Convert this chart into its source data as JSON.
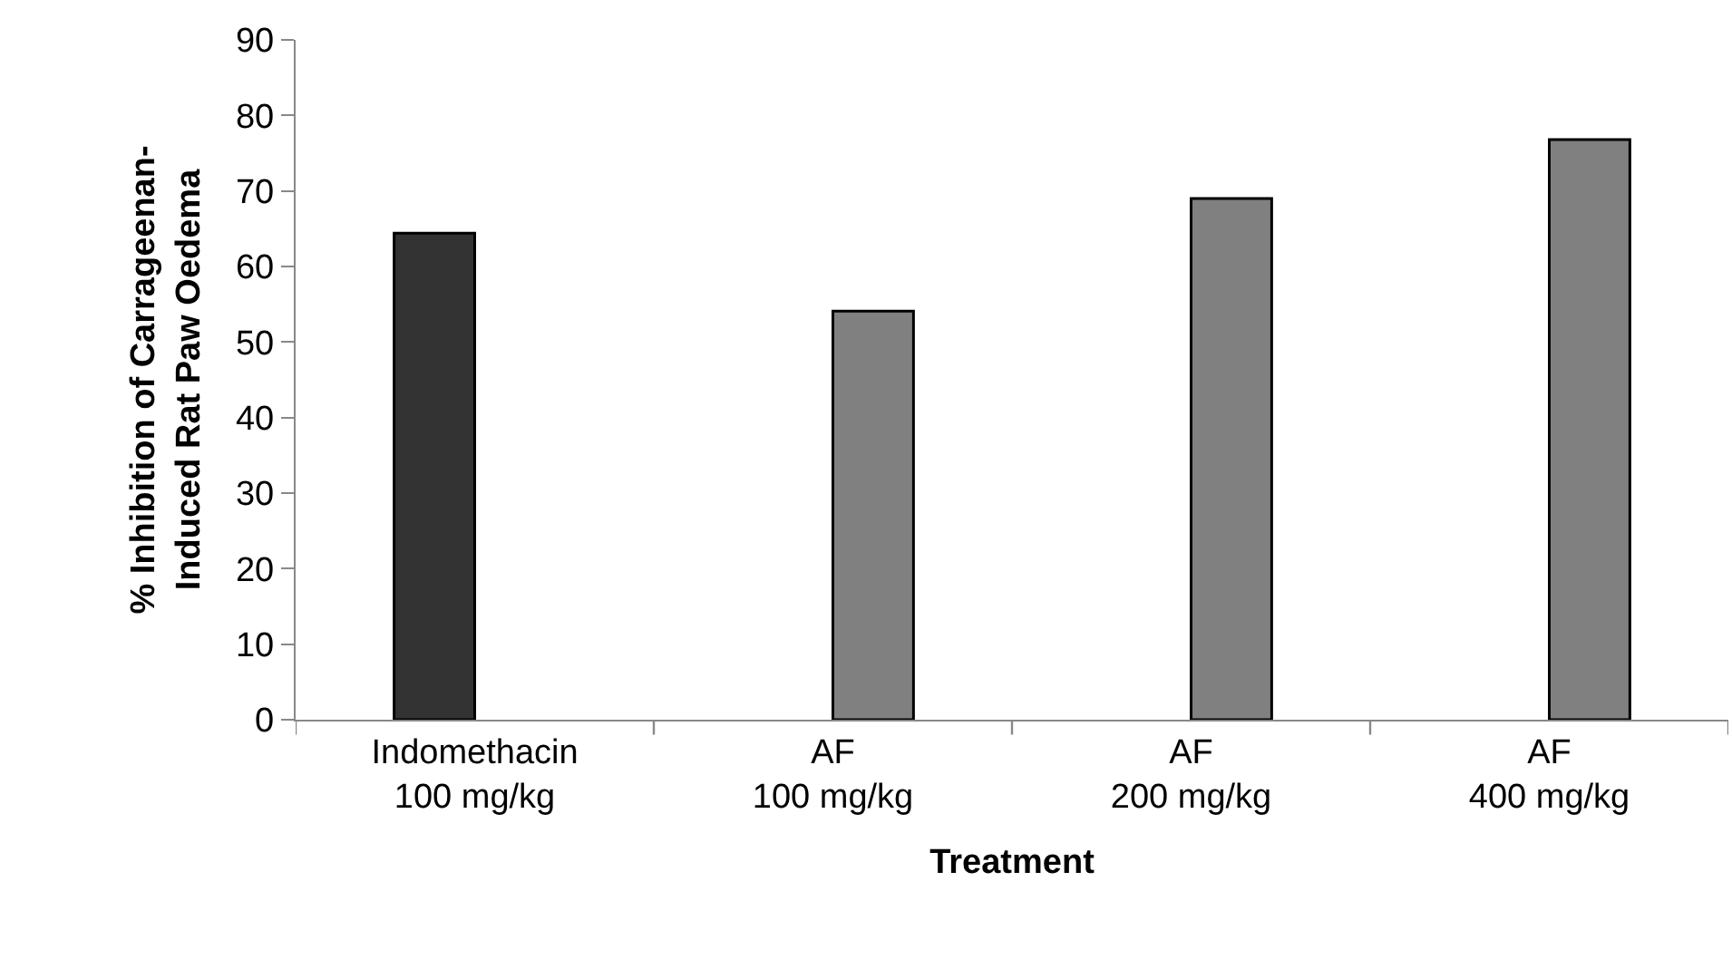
{
  "chart_data": {
    "type": "bar",
    "xlabel": "Treatment",
    "ylabel": "% Inhibition of Carrageenan-\nInduced Rat Paw Oedema",
    "categories": [
      "Indomethacin\n100 mg/kg",
      "AF\n100 mg/kg",
      "AF\n200 mg/kg",
      "AF\n400 mg/kg"
    ],
    "series": [
      {
        "color": "#333333",
        "values": [
          64.4,
          null,
          null,
          null
        ]
      },
      {
        "color": "#808080",
        "values": [
          null,
          54.1,
          69,
          76.8
        ]
      }
    ],
    "ylim": [
      0,
      90
    ],
    "yticks": [
      0,
      10,
      20,
      30,
      40,
      50,
      60,
      70,
      80,
      90
    ],
    "grid": false,
    "legend": false
  }
}
